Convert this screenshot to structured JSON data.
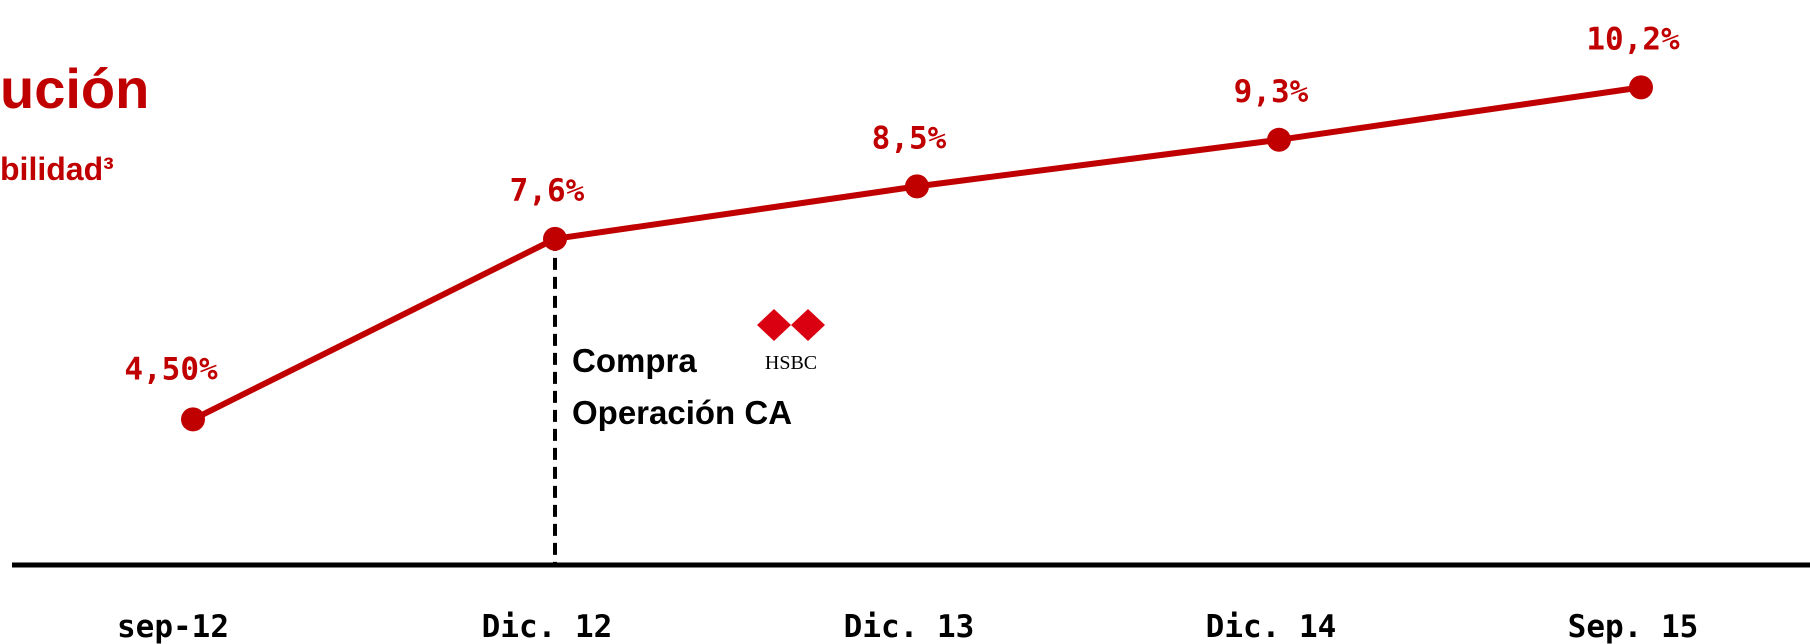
{
  "chart_data": {
    "type": "line",
    "title": "ución",
    "subtitle": "bilidad³",
    "categories": [
      "sep-12",
      "Dic. 12",
      "Dic. 13",
      "Dic. 14",
      "Sep. 15"
    ],
    "values": [
      4.5,
      7.6,
      8.5,
      9.3,
      10.2
    ],
    "value_labels": [
      "4,50%",
      "7,6%",
      "8,5%",
      "9,3%",
      "10,2%"
    ],
    "color": "#c00000",
    "ylim": [
      2,
      11.7
    ],
    "annotation": {
      "lines": [
        "Compra",
        "Operación CA"
      ],
      "logo": "HSBC"
    }
  }
}
